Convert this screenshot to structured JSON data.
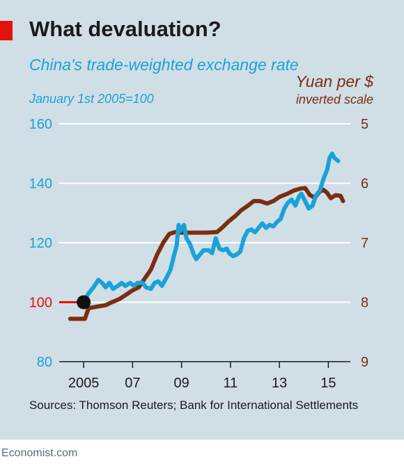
{
  "title": "What devaluation?",
  "left_title": "China's trade-weighted exchange rate",
  "left_subtitle": "January 1st 2005=100",
  "right_title": "Yuan per $",
  "right_subtitle": "inverted scale",
  "source": "Sources: Thomson Reuters; Bank for International Settlements",
  "brand": "Economist.com",
  "colors": {
    "panel_bg": "#d0dee6",
    "trade_weighted": "#1aa2d8",
    "yuan": "#7b2d12",
    "baseline": "#e3120b",
    "marker": "#111111"
  },
  "chart_data": {
    "type": "line",
    "title": "What devaluation?",
    "x_ticks": [
      {
        "value": 2005.0,
        "label": "2005"
      },
      {
        "value": 2007.0,
        "label": "07"
      },
      {
        "value": 2009.0,
        "label": "09"
      },
      {
        "value": 2011.0,
        "label": "11"
      },
      {
        "value": 2013.0,
        "label": "13"
      },
      {
        "value": 2015.0,
        "label": "15"
      }
    ],
    "xlim": [
      2004.0,
      2015.9
    ],
    "left_axis": {
      "label": "China's trade-weighted exchange rate",
      "unit": "January 1st 2005=100",
      "lim": [
        80,
        160
      ],
      "ticks": [
        80,
        100,
        120,
        140,
        160
      ]
    },
    "right_axis": {
      "label": "Yuan per $",
      "note": "inverted scale",
      "lim": [
        9,
        5
      ],
      "inverted": true,
      "ticks": [
        5,
        6,
        7,
        8,
        9
      ]
    },
    "grid": true,
    "start_marker": {
      "x": 2005.0,
      "y": 100
    },
    "series": [
      {
        "name": "China's trade-weighted exchange rate",
        "axis": "left",
        "points": [
          [
            2005.0,
            100
          ],
          [
            2005.2,
            103
          ],
          [
            2005.4,
            105
          ],
          [
            2005.6,
            107.5
          ],
          [
            2005.75,
            106.5
          ],
          [
            2005.9,
            105
          ],
          [
            2006.05,
            106.5
          ],
          [
            2006.2,
            104.5
          ],
          [
            2006.4,
            105.5
          ],
          [
            2006.55,
            106.5
          ],
          [
            2006.7,
            105.5
          ],
          [
            2006.9,
            106.5
          ],
          [
            2007.05,
            105.5
          ],
          [
            2007.2,
            106.5
          ],
          [
            2007.4,
            106.5
          ],
          [
            2007.55,
            105
          ],
          [
            2007.75,
            104.5
          ],
          [
            2007.9,
            106.5
          ],
          [
            2008.05,
            107
          ],
          [
            2008.2,
            105.5
          ],
          [
            2008.4,
            108.5
          ],
          [
            2008.55,
            111
          ],
          [
            2008.7,
            116
          ],
          [
            2008.8,
            119
          ],
          [
            2008.88,
            126
          ],
          [
            2008.95,
            124
          ],
          [
            2009.1,
            126
          ],
          [
            2009.2,
            121.5
          ],
          [
            2009.35,
            119.5
          ],
          [
            2009.5,
            116
          ],
          [
            2009.6,
            114.5
          ],
          [
            2009.75,
            116
          ],
          [
            2009.9,
            117.5
          ],
          [
            2010.1,
            117.5
          ],
          [
            2010.25,
            116.5
          ],
          [
            2010.4,
            121.5
          ],
          [
            2010.55,
            118
          ],
          [
            2010.7,
            117.5
          ],
          [
            2010.85,
            118
          ],
          [
            2010.95,
            116.5
          ],
          [
            2011.1,
            115.5
          ],
          [
            2011.25,
            116
          ],
          [
            2011.4,
            117
          ],
          [
            2011.55,
            121.5
          ],
          [
            2011.7,
            124
          ],
          [
            2011.85,
            124.5
          ],
          [
            2012.0,
            123.5
          ],
          [
            2012.15,
            125
          ],
          [
            2012.3,
            126.5
          ],
          [
            2012.45,
            125
          ],
          [
            2012.6,
            126
          ],
          [
            2012.75,
            125.5
          ],
          [
            2012.9,
            127
          ],
          [
            2013.05,
            128
          ],
          [
            2013.2,
            131.5
          ],
          [
            2013.35,
            133.5
          ],
          [
            2013.5,
            134.5
          ],
          [
            2013.65,
            132.5
          ],
          [
            2013.8,
            135.5
          ],
          [
            2013.9,
            136.5
          ],
          [
            2014.05,
            134
          ],
          [
            2014.2,
            131.5
          ],
          [
            2014.35,
            132.5
          ],
          [
            2014.5,
            136
          ],
          [
            2014.65,
            137.5
          ],
          [
            2014.8,
            141.5
          ],
          [
            2014.95,
            144.5
          ],
          [
            2015.05,
            148.5
          ],
          [
            2015.15,
            150
          ],
          [
            2015.25,
            148.5
          ],
          [
            2015.4,
            147.5
          ]
        ]
      },
      {
        "name": "Yuan per $",
        "axis": "right",
        "points": [
          [
            2004.45,
            8.28
          ],
          [
            2005.05,
            8.28
          ],
          [
            2005.2,
            8.1
          ],
          [
            2005.6,
            8.07
          ],
          [
            2005.9,
            8.05
          ],
          [
            2006.15,
            8.0
          ],
          [
            2006.45,
            7.95
          ],
          [
            2006.75,
            7.87
          ],
          [
            2007.0,
            7.8
          ],
          [
            2007.25,
            7.75
          ],
          [
            2007.5,
            7.6
          ],
          [
            2007.75,
            7.45
          ],
          [
            2008.0,
            7.2
          ],
          [
            2008.25,
            7.0
          ],
          [
            2008.5,
            6.85
          ],
          [
            2008.75,
            6.82
          ],
          [
            2009.0,
            6.83
          ],
          [
            2009.5,
            6.83
          ],
          [
            2010.0,
            6.83
          ],
          [
            2010.45,
            6.82
          ],
          [
            2010.65,
            6.75
          ],
          [
            2010.9,
            6.65
          ],
          [
            2011.2,
            6.55
          ],
          [
            2011.45,
            6.45
          ],
          [
            2011.7,
            6.38
          ],
          [
            2011.95,
            6.3
          ],
          [
            2012.2,
            6.3
          ],
          [
            2012.5,
            6.34
          ],
          [
            2012.75,
            6.3
          ],
          [
            2013.0,
            6.23
          ],
          [
            2013.3,
            6.18
          ],
          [
            2013.6,
            6.12
          ],
          [
            2013.85,
            6.09
          ],
          [
            2014.05,
            6.08
          ],
          [
            2014.25,
            6.2
          ],
          [
            2014.45,
            6.24
          ],
          [
            2014.65,
            6.14
          ],
          [
            2014.8,
            6.11
          ],
          [
            2014.95,
            6.16
          ],
          [
            2015.1,
            6.25
          ],
          [
            2015.3,
            6.2
          ],
          [
            2015.5,
            6.21
          ],
          [
            2015.6,
            6.3
          ]
        ]
      }
    ]
  }
}
